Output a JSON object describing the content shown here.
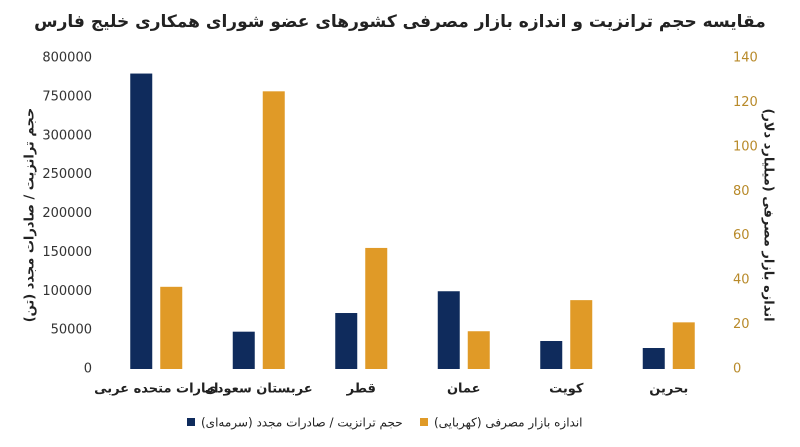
{
  "chart_data": {
    "type": "bar",
    "title": "مقایسه حجم ترانزیت و اندازه بازار مصرفی کشورهای عضو شورای همکاری خلیج فارس",
    "y_label": "حجم ترانزیت / صادرات مجدد (تن)",
    "y2_label": "اندازه بازار مصرفی (میلیارد دلار)",
    "categories": [
      "امارات متحده عربی",
      "عربستان سعودی",
      "قطر",
      "عمان",
      "کویت",
      "بحرین"
    ],
    "series": [
      {
        "name": "حجم ترانزیت / صادرات مجدد (سرمه‌ای)",
        "color": "#0f2b5c",
        "values": [
          780000,
          48000,
          72000,
          100000,
          36000,
          27000
        ]
      },
      {
        "name": "اندازه بازار مصرفی (کهربایی)",
        "color": "#e09a27",
        "axis": "y2",
        "values": [
          37,
          125,
          54.5,
          17,
          31,
          21
        ]
      }
    ],
    "ylim": [
      0,
      800000
    ],
    "yticks": [
      0,
      50000,
      100000,
      150000,
      200000,
      250000,
      300000,
      750000,
      800000
    ],
    "y2lim": [
      0,
      140
    ],
    "y2ticks": [
      0,
      20,
      40,
      60,
      80,
      100,
      120,
      140
    ],
    "legend": "bottom"
  }
}
